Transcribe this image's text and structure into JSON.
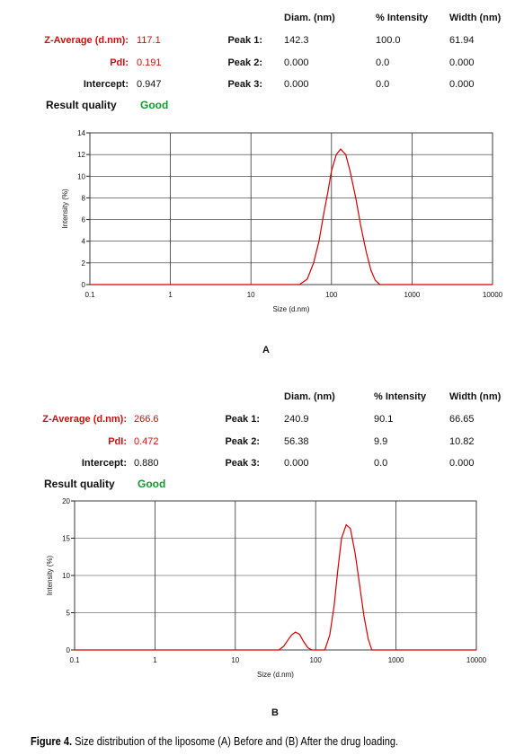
{
  "chart_data": [
    {
      "type": "line",
      "xlabel": "Size (d.nm)",
      "ylabel": "Intensity (%)",
      "xscale": "log",
      "grid": true,
      "color": "#d40000",
      "xlim": [
        0.1,
        10000
      ],
      "xticks": [
        0.1,
        1,
        10,
        100,
        1000,
        10000
      ],
      "ylim": [
        0,
        14
      ],
      "yticks": [
        0,
        2,
        4,
        6,
        8,
        10,
        12,
        14
      ],
      "x": [
        0.1,
        40,
        50,
        60,
        70,
        80,
        90,
        100,
        115,
        130,
        150,
        170,
        200,
        230,
        270,
        310,
        350,
        400,
        10000
      ],
      "values": [
        0,
        0,
        0.5,
        2,
        4,
        6.5,
        8.5,
        10.5,
        12,
        12.5,
        12,
        10.5,
        8,
        5.5,
        3,
        1.3,
        0.4,
        0,
        0
      ]
    },
    {
      "type": "line",
      "xlabel": "Size (d.nm)",
      "ylabel": "Intensity (%)",
      "xscale": "log",
      "grid": true,
      "color": "#d40000",
      "xlim": [
        0.1,
        10000
      ],
      "xticks": [
        0.1,
        1,
        10,
        100,
        1000,
        10000
      ],
      "ylim": [
        0,
        20
      ],
      "yticks": [
        0,
        5,
        10,
        15,
        20
      ],
      "x": [
        0.1,
        35,
        40,
        45,
        50,
        56,
        63,
        70,
        80,
        90,
        130,
        150,
        170,
        190,
        210,
        240,
        270,
        310,
        350,
        400,
        450,
        500,
        10000
      ],
      "values": [
        0,
        0,
        0.5,
        1.3,
        2,
        2.4,
        2.1,
        1.2,
        0.3,
        0,
        0,
        2,
        6,
        11,
        15,
        16.8,
        16.3,
        13,
        9,
        4.5,
        1.5,
        0,
        0
      ]
    }
  ],
  "tables": [
    {
      "headers": [
        "Diam. (nm)",
        "% Intensity",
        "Width (nm)"
      ],
      "rows": [
        {
          "label": "Z-Average (d.nm):",
          "value": "117.1",
          "peak": "Peak 1:",
          "cells": [
            "142.3",
            "100.0",
            "61.94"
          ]
        },
        {
          "label": "PdI:",
          "value": "0.191",
          "peak": "Peak 2:",
          "cells": [
            "0.000",
            "0.0",
            "0.000"
          ]
        },
        {
          "label": "Intercept:",
          "value": "0.947",
          "peak": "Peak 3:",
          "cells": [
            "0.000",
            "0.0",
            "0.000"
          ]
        }
      ],
      "quality_label": "Result quality",
      "quality": "Good",
      "panel_label": "A"
    },
    {
      "headers": [
        "Diam. (nm)",
        "% Intensity",
        "Width (nm)"
      ],
      "rows": [
        {
          "label": "Z-Average (d.nm):",
          "value": "266.6",
          "peak": "Peak 1:",
          "cells": [
            "240.9",
            "90.1",
            "66.65"
          ]
        },
        {
          "label": "PdI:",
          "value": "0.472",
          "peak": "Peak 2:",
          "cells": [
            "56.38",
            "9.9",
            "10.82"
          ]
        },
        {
          "label": "Intercept:",
          "value": "0.880",
          "peak": "Peak 3:",
          "cells": [
            "0.000",
            "0.0",
            "0.000"
          ]
        }
      ],
      "quality_label": "Result quality",
      "quality": "Good",
      "panel_label": "B"
    }
  ],
  "caption": {
    "label": "Figure 4.",
    "text": "Size distribution of the liposome (A) Before and (B) After the drug loading."
  }
}
